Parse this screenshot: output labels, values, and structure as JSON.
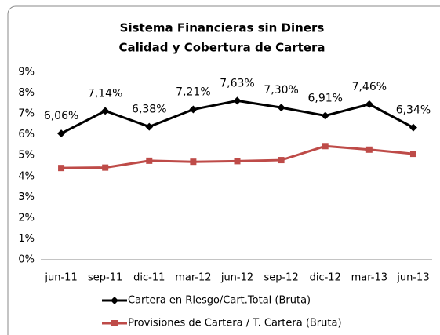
{
  "chart_data": {
    "type": "line",
    "title": "Sistema Financieras sin Diners",
    "subtitle": "Calidad y Cobertura de Cartera",
    "categories": [
      "jun-11",
      "sep-11",
      "dic-11",
      "mar-12",
      "jun-12",
      "sep-12",
      "dic-12",
      "mar-13",
      "jun-13"
    ],
    "series": [
      {
        "name": "Cartera en Riesgo/Cart.Total (Bruta)",
        "color": "#000000",
        "marker": "diamond",
        "values": [
          6.06,
          7.14,
          6.38,
          7.21,
          7.63,
          7.3,
          6.91,
          7.46,
          6.34
        ],
        "value_labels": [
          "6,06%",
          "7,14%",
          "6,38%",
          "7,21%",
          "7,63%",
          "7,30%",
          "6,91%",
          "7,46%",
          "6,34%"
        ]
      },
      {
        "name": "Provisiones de Cartera / T. Cartera (Bruta)",
        "color": "#be4b48",
        "marker": "square",
        "values": [
          4.4,
          4.42,
          4.75,
          4.7,
          4.73,
          4.78,
          5.45,
          5.28,
          5.08
        ]
      }
    ],
    "ylim": [
      0,
      9
    ],
    "yticks": [
      {
        "value": 0,
        "label": "0%"
      },
      {
        "value": 1,
        "label": "1%"
      },
      {
        "value": 2,
        "label": "2%"
      },
      {
        "value": 3,
        "label": "3%"
      },
      {
        "value": 4,
        "label": "4%"
      },
      {
        "value": 5,
        "label": "5%"
      },
      {
        "value": 6,
        "label": "6%"
      },
      {
        "value": 7,
        "label": "7%"
      },
      {
        "value": 8,
        "label": "8%"
      },
      {
        "value": 9,
        "label": "9%"
      }
    ],
    "legend": "bottom"
  }
}
